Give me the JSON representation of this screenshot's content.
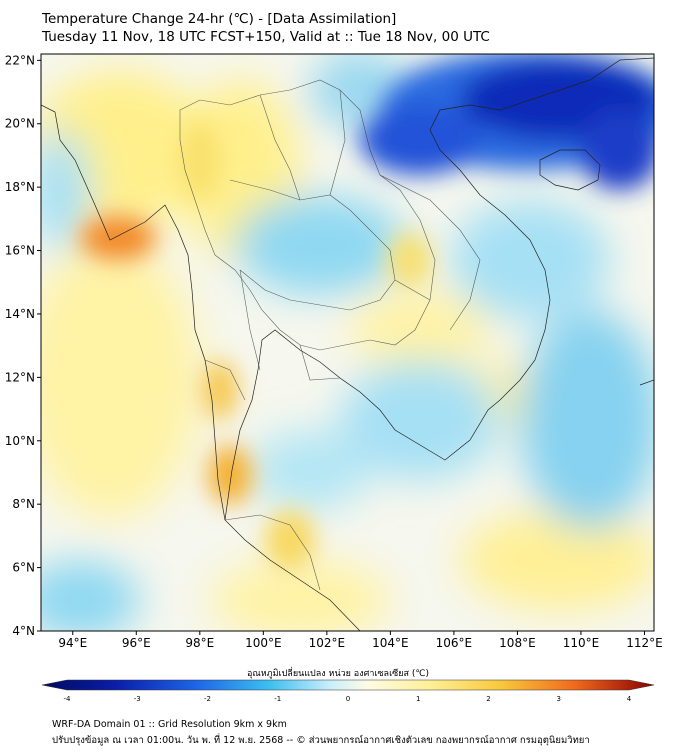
{
  "header": {
    "title_line1": "Temperature Change 24-hr (℃) - [Data Assimilation]",
    "title_line2": "Tuesday 11 Nov, 18 UTC FCST+150, Valid at :: Tue 18 Nov, 00 UTC"
  },
  "map": {
    "lon_range": [
      93,
      112.3
    ],
    "lat_range": [
      4,
      22.2
    ],
    "lat_ticks": [
      "22°N",
      "20°N",
      "18°N",
      "16°N",
      "14°N",
      "12°N",
      "10°N",
      "8°N",
      "6°N",
      "4°N"
    ],
    "lat_values": [
      22,
      20,
      18,
      16,
      14,
      12,
      10,
      8,
      6,
      4
    ],
    "lon_ticks": [
      "94°E",
      "96°E",
      "98°E",
      "100°E",
      "102°E",
      "104°E",
      "106°E",
      "108°E",
      "110°E",
      "112°E"
    ],
    "lon_values": [
      94,
      96,
      98,
      100,
      102,
      104,
      106,
      108,
      110,
      112
    ],
    "colors": {
      "cold_strong": "#0a1ea8",
      "cold": "#1e64e6",
      "cool": "#64c8f0",
      "neutral": "#f4f8f0",
      "warm": "#fff09a",
      "warmer": "#f8c83c",
      "hot": "#f07020"
    }
  },
  "colorbar": {
    "title": "อุณหภูมิเปลี่ยนแปลง หน่วย องศาเซลเซียส (℃)",
    "ticks": [
      "-4",
      "-3",
      "-2",
      "-1",
      "0",
      "1",
      "2",
      "3",
      "4"
    ],
    "tick_values": [
      -4,
      -3,
      -2,
      -1,
      0,
      1,
      2,
      3,
      4
    ],
    "range": [
      -4,
      4
    ]
  },
  "footer": {
    "line1": "WRF-DA Domain 01 :: Grid Resolution 9km x 9km",
    "line2": "ปรับปรุงข้อมูล ณ เวลา 01:00น. วัน พ. ที่ 12 พ.ย. 2568 -- © ส่วนพยากรณ์อากาศเชิงตัวเลข กองพยากรณ์อากาศ กรมอุตุนิยมวิทยา"
  }
}
